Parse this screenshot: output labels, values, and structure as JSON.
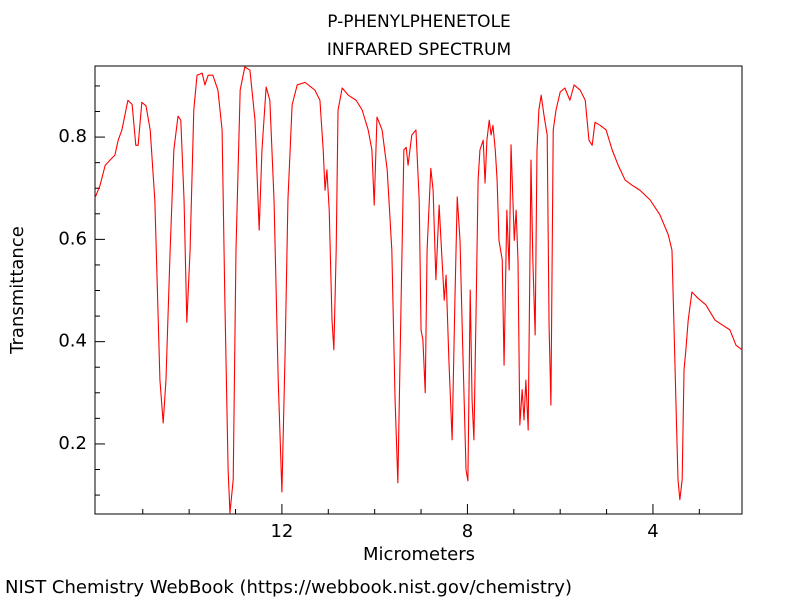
{
  "chart_data": {
    "type": "line",
    "title": "P-PHENYLPHENETOLE",
    "subtitle": "INFRARED SPECTRUM",
    "xlabel": "Micrometers",
    "ylabel": "Transmittance",
    "source": "NIST Chemistry WebBook (https://webbook.nist.gov/chemistry)",
    "color": "#ff0000",
    "xlim": [
      16.03,
      2.08
    ],
    "ylim": [
      0.063,
      0.939
    ],
    "xticks": [
      12,
      8,
      4
    ],
    "xminorticks": [
      15,
      14,
      13,
      11,
      10,
      9,
      7,
      6,
      5,
      3
    ],
    "yticks": [
      0.2,
      0.4,
      0.6,
      0.8
    ],
    "yminorticks": [
      0.1,
      0.15,
      0.25,
      0.3,
      0.35,
      0.45,
      0.5,
      0.55,
      0.65,
      0.7,
      0.75,
      0.85,
      0.9
    ],
    "x": [
      16.03,
      15.92,
      15.81,
      15.6,
      15.53,
      15.45,
      15.32,
      15.23,
      15.15,
      15.1,
      15.02,
      14.93,
      14.84,
      14.74,
      14.63,
      14.56,
      14.5,
      14.41,
      14.33,
      14.24,
      14.18,
      14.11,
      14.05,
      13.98,
      13.9,
      13.83,
      13.72,
      13.66,
      13.59,
      13.49,
      13.38,
      13.29,
      13.23,
      13.16,
      13.12,
      13.05,
      12.99,
      12.9,
      12.8,
      12.69,
      12.58,
      12.49,
      12.43,
      12.34,
      12.26,
      12.17,
      12.08,
      12.0,
      11.93,
      11.87,
      11.78,
      11.67,
      11.5,
      11.29,
      11.18,
      11.11,
      11.07,
      11.03,
      10.98,
      10.92,
      10.88,
      10.83,
      10.79,
      10.7,
      10.57,
      10.4,
      10.27,
      10.14,
      10.06,
      10.01,
      9.95,
      9.84,
      9.73,
      9.63,
      9.56,
      9.5,
      9.43,
      9.37,
      9.32,
      9.28,
      9.2,
      9.11,
      9.04,
      9.0,
      8.96,
      8.91,
      8.87,
      8.79,
      8.74,
      8.68,
      8.61,
      8.57,
      8.5,
      8.46,
      8.4,
      8.33,
      8.27,
      8.22,
      8.16,
      8.1,
      8.03,
      7.99,
      7.94,
      7.9,
      7.86,
      7.81,
      7.77,
      7.73,
      7.66,
      7.62,
      7.58,
      7.53,
      7.49,
      7.45,
      7.4,
      7.36,
      7.32,
      7.25,
      7.21,
      7.15,
      7.1,
      7.06,
      6.99,
      6.95,
      6.91,
      6.87,
      6.82,
      6.78,
      6.74,
      6.69,
      6.63,
      6.59,
      6.54,
      6.5,
      6.46,
      6.41,
      6.35,
      6.28,
      6.24,
      6.2,
      6.15,
      6.09,
      6.0,
      5.9,
      5.79,
      5.7,
      5.57,
      5.46,
      5.38,
      5.31,
      5.25,
      5.14,
      5.01,
      4.88,
      4.75,
      4.6,
      4.45,
      4.28,
      4.06,
      3.85,
      3.67,
      3.59,
      3.55,
      3.5,
      3.46,
      3.42,
      3.37,
      3.33,
      3.29,
      3.24,
      3.16,
      3.03,
      2.86,
      2.66,
      2.51,
      2.34,
      2.21,
      2.08
    ],
    "values": [
      0.681,
      0.706,
      0.745,
      0.765,
      0.794,
      0.814,
      0.872,
      0.864,
      0.784,
      0.784,
      0.868,
      0.861,
      0.814,
      0.677,
      0.325,
      0.241,
      0.325,
      0.579,
      0.775,
      0.841,
      0.833,
      0.677,
      0.438,
      0.579,
      0.853,
      0.921,
      0.925,
      0.902,
      0.921,
      0.921,
      0.892,
      0.814,
      0.481,
      0.149,
      0.065,
      0.13,
      0.579,
      0.892,
      0.937,
      0.931,
      0.833,
      0.618,
      0.775,
      0.898,
      0.872,
      0.677,
      0.325,
      0.106,
      0.384,
      0.677,
      0.863,
      0.902,
      0.907,
      0.892,
      0.872,
      0.775,
      0.696,
      0.736,
      0.657,
      0.442,
      0.384,
      0.579,
      0.853,
      0.896,
      0.882,
      0.872,
      0.853,
      0.814,
      0.775,
      0.667,
      0.839,
      0.814,
      0.736,
      0.579,
      0.286,
      0.124,
      0.481,
      0.775,
      0.78,
      0.745,
      0.804,
      0.814,
      0.677,
      0.423,
      0.403,
      0.3,
      0.579,
      0.739,
      0.696,
      0.521,
      0.667,
      0.598,
      0.481,
      0.53,
      0.364,
      0.208,
      0.481,
      0.683,
      0.598,
      0.384,
      0.149,
      0.128,
      0.501,
      0.286,
      0.208,
      0.481,
      0.716,
      0.775,
      0.794,
      0.71,
      0.794,
      0.833,
      0.804,
      0.823,
      0.775,
      0.716,
      0.598,
      0.56,
      0.354,
      0.657,
      0.54,
      0.785,
      0.598,
      0.657,
      0.56,
      0.237,
      0.306,
      0.247,
      0.325,
      0.227,
      0.755,
      0.56,
      0.413,
      0.775,
      0.853,
      0.882,
      0.843,
      0.804,
      0.433,
      0.276,
      0.814,
      0.853,
      0.888,
      0.896,
      0.872,
      0.902,
      0.892,
      0.872,
      0.794,
      0.784,
      0.829,
      0.823,
      0.814,
      0.775,
      0.745,
      0.716,
      0.706,
      0.696,
      0.677,
      0.648,
      0.609,
      0.579,
      0.442,
      0.266,
      0.13,
      0.091,
      0.13,
      0.345,
      0.384,
      0.442,
      0.497,
      0.485,
      0.472,
      0.442,
      0.433,
      0.423,
      0.393,
      0.384
    ]
  }
}
